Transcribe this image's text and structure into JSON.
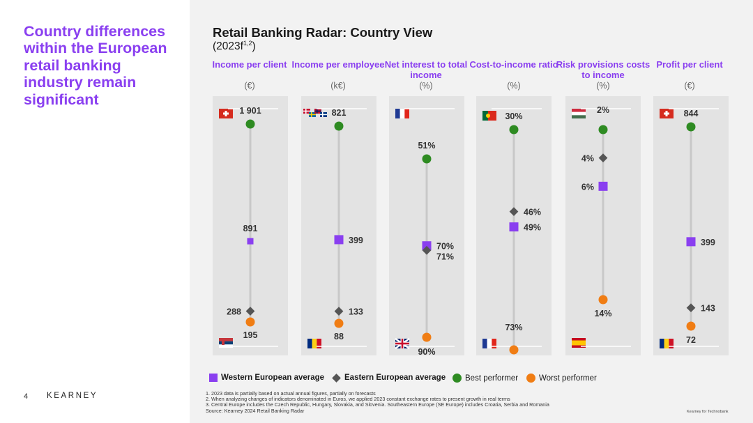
{
  "headline": "Country differences within the European retail banking industry remain significant",
  "title": "Retail Banking Radar: Country View",
  "subtitle_main": "(2023f",
  "subtitle_sup": "1,2",
  "subtitle_end": ")",
  "page_number": "4",
  "brand": "KEARNEY",
  "credit": "Kearney for Technobank",
  "columns": [
    {
      "label": "Income per client",
      "unit": "(€)"
    },
    {
      "label": "Income per employee",
      "unit": "(k€)"
    },
    {
      "label": "Net interest to total income",
      "unit": "(%)"
    },
    {
      "label": "Cost-to-income ratio",
      "unit": "(%)"
    },
    {
      "label": "Risk provisions costs to income",
      "unit": "(%)"
    },
    {
      "label": "Profit per client",
      "unit": "(€)"
    }
  ],
  "legend": {
    "western": "Western European average",
    "eastern": "Eastern European average",
    "best": "Best performer",
    "worst": "Worst performer"
  },
  "colors": {
    "western": "#8a3ff0",
    "eastern": "#555555",
    "best": "#2e8b22",
    "worst": "#f07d14",
    "accent": "#8a3ff0"
  },
  "footnotes": [
    "1. 2023 data is partially based on actual annual figures, partially on forecasts",
    "2. When analyzing changes of indicators denominated in Euros, we applied 2023 constant exchange rates to present growth in real terms",
    "3. Central Europe includes the Czech Republic, Hungary, Slovakia, and Slovenia. Southeastern Europe (SE Europe) includes Croatia, Serbia and Romania",
    "Source: Kearney 2024 Retail Banking Radar"
  ],
  "chart_data": {
    "type": "scatter",
    "title": "Retail Banking Radar: Country View",
    "categories": [
      "Income per client",
      "Income per employee",
      "Net interest to total income",
      "Cost-to-income ratio",
      "Risk provisions costs to income",
      "Profit per client"
    ],
    "series": [
      {
        "name": "Best performer",
        "values": [
          1901,
          821,
          51,
          30,
          2,
          844
        ],
        "labels": [
          "1 901",
          "821",
          "51%",
          "30%",
          "2%",
          "844"
        ],
        "countries": [
          "Switzerland",
          "Nordics",
          "France",
          "Portugal",
          "Hungary",
          "Switzerland"
        ]
      },
      {
        "name": "Western European average",
        "values": [
          891,
          399,
          70,
          49,
          6,
          399
        ],
        "labels": [
          "891",
          "399",
          "70%",
          "49%",
          "6%",
          "399"
        ]
      },
      {
        "name": "Eastern European average",
        "values": [
          288,
          133,
          71,
          46,
          4,
          143
        ],
        "labels": [
          "288",
          "133",
          "71%",
          "46%",
          "4%",
          "143"
        ]
      },
      {
        "name": "Worst performer",
        "values": [
          195,
          88,
          90,
          73,
          14,
          72
        ],
        "labels": [
          "195",
          "88",
          "90%",
          "73%",
          "14%",
          "72"
        ],
        "countries": [
          "Serbia",
          "Romania",
          "United Kingdom",
          "France",
          "Spain",
          "Romania"
        ]
      }
    ]
  }
}
